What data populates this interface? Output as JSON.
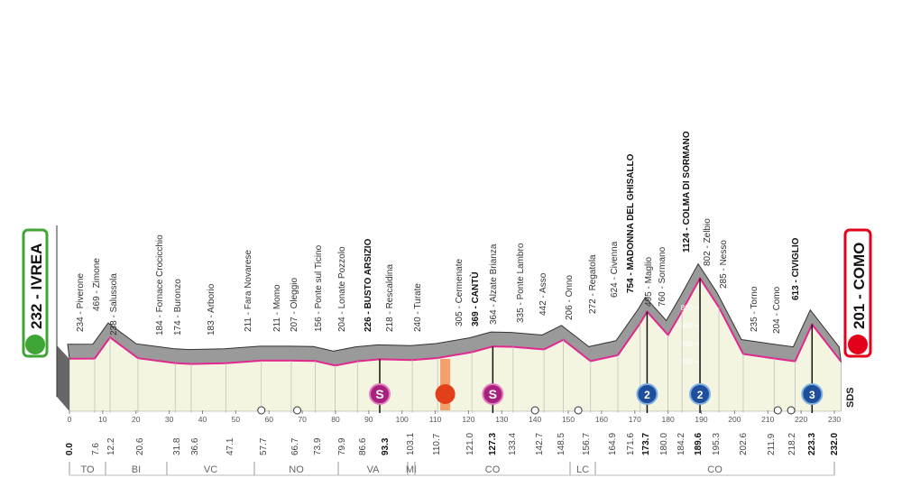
{
  "start": {
    "label": "232 - IVREA",
    "km": "0.0"
  },
  "finish": {
    "label": "201 - COMO",
    "km": "232.0"
  },
  "places": [
    {
      "label": "234 - Piverone",
      "km": "7.6"
    },
    {
      "label": "469 - Zimone",
      "km": "12.2"
    },
    {
      "label": "238 - Salussola",
      "km": "20.6"
    },
    {
      "label": "184 - Fornace Crocicchio",
      "km": "31.8"
    },
    {
      "label": "174 - Buronzo",
      "km": "36.6"
    },
    {
      "label": "183 - Arborio",
      "km": "47.1"
    },
    {
      "label": "211 - Fara Novarese",
      "km": "57.7"
    },
    {
      "label": "211 - Momo",
      "km": "66.7"
    },
    {
      "label": "207 - Oleggio",
      "km": "73.9"
    },
    {
      "label": "156 - Ponte sul Ticino",
      "km": "79.9"
    },
    {
      "label": "204 - Lonate Pozzolo",
      "km": "86.6"
    },
    {
      "label": "226 - BUSTO ARSIZIO",
      "km": "93.3",
      "bold": true
    },
    {
      "label": "218 - Rescaldina",
      "km": "103.1"
    },
    {
      "label": "240 - Turate",
      "km": "110.7"
    },
    {
      "label": "305 - Cermenate",
      "km": "121.0"
    },
    {
      "label": "369 - CANTÙ",
      "km": "127.3",
      "bold": true
    },
    {
      "label": "364 - Alzate Brianza",
      "km": "133.4"
    },
    {
      "label": "335 - Ponte Lambro",
      "km": "142.7"
    },
    {
      "label": "442 - Asso",
      "km": "148.5"
    },
    {
      "label": "206 - Onno",
      "km": "156.7"
    },
    {
      "label": "272 - Regatola",
      "km": "164.9"
    },
    {
      "label": "624 - Civenna",
      "km": "171.6"
    },
    {
      "label": "754 - MADONNA DEL GHISALLO",
      "km": "173.7",
      "bold": true
    },
    {
      "label": "495 - Maglio",
      "km": "180.0"
    },
    {
      "label": "760 - Sormano",
      "km": "184.2"
    },
    {
      "label": "1124 - COLMA DI SORMANO",
      "km": "189.6",
      "bold": true
    },
    {
      "label": "802 - Zelbio",
      "km": "195.3"
    },
    {
      "label": "285 - Nesso",
      "km": "202.6"
    },
    {
      "label": "235 - Torno",
      "km": "211.9"
    },
    {
      "label": "204 - Como",
      "km": "218.2"
    },
    {
      "label": "613 - CIVIGLIO",
      "km": "223.3",
      "bold": true
    }
  ],
  "km_axis": [
    0,
    10,
    20,
    30,
    40,
    50,
    60,
    70,
    80,
    90,
    100,
    110,
    120,
    130,
    140,
    150,
    160,
    170,
    180,
    190,
    200,
    210,
    220,
    230
  ],
  "altitude_scale": [
    200,
    400,
    600,
    800
  ],
  "regions": [
    "TO",
    "BI",
    "VC",
    "NO",
    "VA",
    "MI",
    "CO",
    "LC",
    "CO"
  ],
  "sprints": [
    {
      "km": "93.3",
      "symbol": "S"
    },
    {
      "km": "127.3",
      "symbol": "S"
    }
  ],
  "kom": [
    {
      "km": "173.7",
      "category": "2"
    },
    {
      "km": "189.6",
      "category": "2"
    },
    {
      "km": "223.3",
      "category": "3"
    }
  ],
  "logo": "SDS"
}
